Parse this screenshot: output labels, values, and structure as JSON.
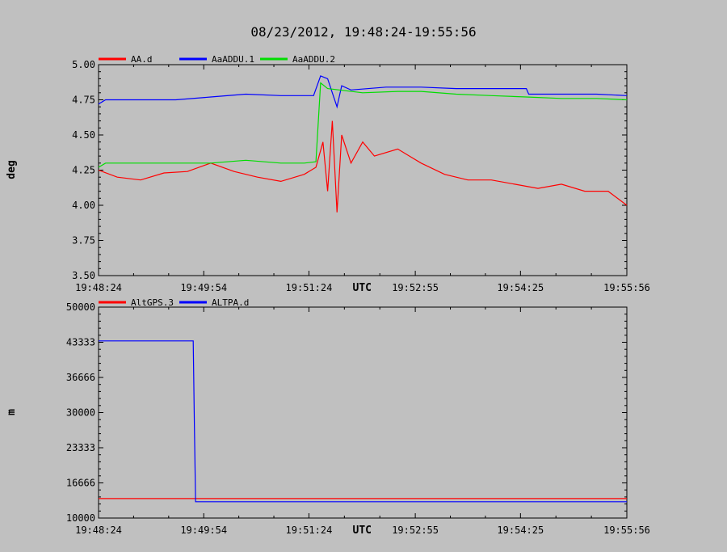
{
  "title": "08/23/2012, 19:48:24-19:55:56",
  "chart_data": [
    {
      "type": "line",
      "ylabel": "deg",
      "xlabel": "UTC",
      "ylim": [
        3.5,
        5.0
      ],
      "yticks": [
        "5.00",
        "4.75",
        "4.50",
        "4.25",
        "4.00",
        "3.75",
        "3.50"
      ],
      "yticks_values": [
        5.0,
        4.75,
        4.5,
        4.25,
        4.0,
        3.75,
        3.5
      ],
      "xticks": [
        "19:48:24",
        "19:49:54",
        "19:51:24",
        "19:52:55",
        "19:54:25",
        "19:55:56"
      ],
      "grid": false,
      "legend_position": "top-left",
      "series": [
        {
          "name": "AA.d",
          "color": "#ff0000",
          "x": [
            "19:48:24",
            "19:48:40",
            "19:49:00",
            "19:49:20",
            "19:49:40",
            "19:50:00",
            "19:50:20",
            "19:50:40",
            "19:51:00",
            "19:51:20",
            "19:51:30",
            "19:51:36",
            "19:51:40",
            "19:51:44",
            "19:51:48",
            "19:51:52",
            "19:52:00",
            "19:52:10",
            "19:52:20",
            "19:52:40",
            "19:53:00",
            "19:53:20",
            "19:53:40",
            "19:54:00",
            "19:54:20",
            "19:54:40",
            "19:55:00",
            "19:55:20",
            "19:55:40",
            "19:55:56"
          ],
          "y": [
            4.25,
            4.2,
            4.18,
            4.23,
            4.24,
            4.3,
            4.24,
            4.2,
            4.17,
            4.22,
            4.27,
            4.45,
            4.1,
            4.6,
            3.95,
            4.5,
            4.3,
            4.45,
            4.35,
            4.4,
            4.3,
            4.22,
            4.18,
            4.18,
            4.15,
            4.12,
            4.15,
            4.1,
            4.1,
            4.0
          ]
        },
        {
          "name": "AaADDU.1",
          "color": "#0000ff",
          "x": [
            "19:48:24",
            "19:48:30",
            "19:49:00",
            "19:49:30",
            "19:50:00",
            "19:50:30",
            "19:51:00",
            "19:51:20",
            "19:51:28",
            "19:51:34",
            "19:51:40",
            "19:51:48",
            "19:51:52",
            "19:52:00",
            "19:52:30",
            "19:53:00",
            "19:53:30",
            "19:54:00",
            "19:54:30",
            "19:54:32",
            "19:55:00",
            "19:55:30",
            "19:55:56"
          ],
          "y": [
            4.72,
            4.75,
            4.75,
            4.75,
            4.77,
            4.79,
            4.78,
            4.78,
            4.78,
            4.92,
            4.9,
            4.7,
            4.85,
            4.82,
            4.84,
            4.84,
            4.83,
            4.83,
            4.83,
            4.79,
            4.79,
            4.79,
            4.78
          ]
        },
        {
          "name": "AaADDU.2",
          "color": "#00dd00",
          "x": [
            "19:48:24",
            "19:48:30",
            "19:49:00",
            "19:49:30",
            "19:50:00",
            "19:50:30",
            "19:51:00",
            "19:51:20",
            "19:51:30",
            "19:51:34",
            "19:51:40",
            "19:51:50",
            "19:52:10",
            "19:52:40",
            "19:53:00",
            "19:53:30",
            "19:54:00",
            "19:54:30",
            "19:55:00",
            "19:55:30",
            "19:55:56"
          ],
          "y": [
            4.27,
            4.3,
            4.3,
            4.3,
            4.3,
            4.32,
            4.3,
            4.3,
            4.31,
            4.87,
            4.83,
            4.82,
            4.8,
            4.81,
            4.81,
            4.79,
            4.78,
            4.77,
            4.76,
            4.76,
            4.75
          ]
        }
      ]
    },
    {
      "type": "line",
      "ylabel": "m",
      "xlabel": "UTC",
      "ylim": [
        10000,
        50000
      ],
      "yticks": [
        "50000",
        "43333",
        "36666",
        "30000",
        "23333",
        "16666",
        "10000"
      ],
      "yticks_values": [
        50000,
        43333,
        36666,
        30000,
        23333,
        16666,
        10000
      ],
      "xticks": [
        "19:48:24",
        "19:49:54",
        "19:51:24",
        "19:52:55",
        "19:54:25",
        "19:55:56"
      ],
      "grid": false,
      "legend_position": "top-left",
      "series": [
        {
          "name": "AltGPS.3",
          "color": "#ff0000",
          "x": [
            "19:48:24",
            "19:55:56"
          ],
          "y": [
            13700,
            13700
          ]
        },
        {
          "name": "ALTPA.d",
          "color": "#0000ff",
          "x": [
            "19:48:24",
            "19:49:45",
            "19:49:46",
            "19:49:46",
            "19:49:47",
            "19:55:56"
          ],
          "y": [
            43600,
            43600,
            28000,
            28000,
            13100,
            13100
          ]
        }
      ]
    }
  ]
}
